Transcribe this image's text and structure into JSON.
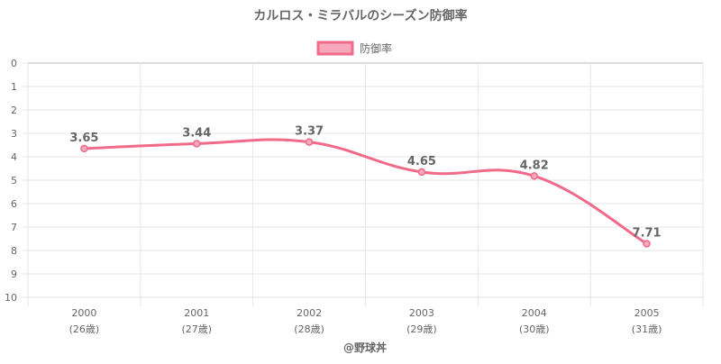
{
  "chart_data": {
    "type": "line",
    "title": "カルロス・ミラバルのシーズン防御率",
    "legend": {
      "label": "防御率",
      "placement": "top-center"
    },
    "categories": [
      "2000",
      "2001",
      "2002",
      "2003",
      "2004",
      "2005"
    ],
    "category_sublabels": [
      "(26歳)",
      "(27歳)",
      "(28歳)",
      "(29歳)",
      "(30歳)",
      "(31歳)"
    ],
    "series": [
      {
        "name": "防御率",
        "values": [
          3.65,
          3.44,
          3.37,
          4.65,
          4.82,
          7.71
        ],
        "color": "#f06a8a"
      }
    ],
    "data_labels": [
      "3.65",
      "3.44",
      "3.37",
      "4.65",
      "4.82",
      "7.71"
    ],
    "y_ticks": [
      "0",
      "1",
      "2",
      "3",
      "4",
      "5",
      "6",
      "7",
      "8",
      "9",
      "10"
    ],
    "ylim": [
      0,
      10
    ],
    "y_reversed": true,
    "grid": true,
    "credit": "@野球丼"
  }
}
